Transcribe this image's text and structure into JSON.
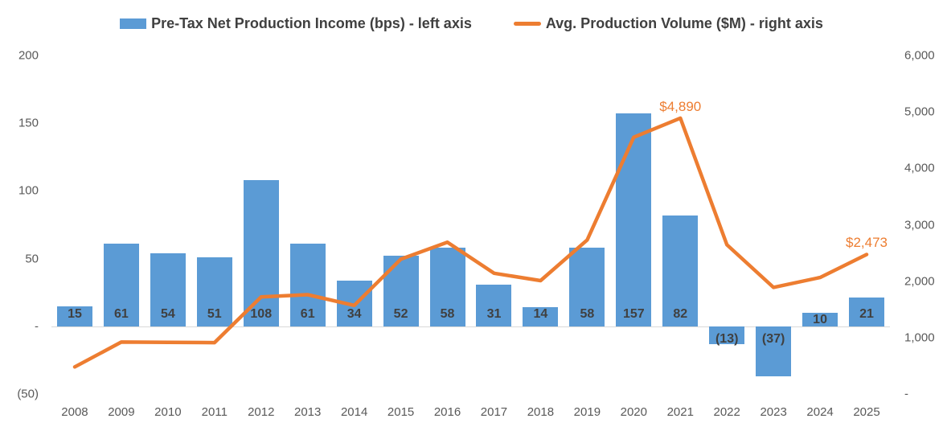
{
  "legend": {
    "items": [
      {
        "label": "Pre-Tax Net Production Income (bps) - left axis",
        "marker": "bar-swatch",
        "color": "#5B9BD5"
      },
      {
        "label": "Avg. Production Volume ($M) - right axis",
        "marker": "line-swatch",
        "color": "#ED7D31"
      }
    ]
  },
  "chart_data": {
    "type": "bar",
    "subtype": "combo-bar-line-dual-axis",
    "title": "",
    "categories": [
      "2008",
      "2009",
      "2010",
      "2011",
      "2012",
      "2013",
      "2014",
      "2015",
      "2016",
      "2017",
      "2018",
      "2019",
      "2020",
      "2021",
      "2022",
      "2023",
      "2024",
      "2025"
    ],
    "series": [
      {
        "name": "Pre-Tax Net Production Income (bps) - left axis",
        "type": "bar",
        "axis": "left",
        "color": "#5B9BD5",
        "values": [
          15,
          61,
          54,
          51,
          108,
          61,
          34,
          52,
          58,
          31,
          14,
          58,
          157,
          82,
          -13,
          -37,
          10,
          21
        ],
        "data_labels": [
          "15",
          "61",
          "54",
          "51",
          "108",
          "61",
          "34",
          "52",
          "58",
          "31",
          "14",
          "58",
          "157",
          "82",
          "(13)",
          "(37)",
          "10",
          "21"
        ]
      },
      {
        "name": "Avg. Production Volume ($M) - right axis",
        "type": "line",
        "axis": "right",
        "color": "#ED7D31",
        "values": [
          480,
          920,
          915,
          910,
          1720,
          1760,
          1570,
          2390,
          2690,
          2140,
          2010,
          2730,
          4550,
          4890,
          2645,
          1890,
          2065,
          2473
        ],
        "annotations": [
          {
            "index": 13,
            "text": "$4,890"
          },
          {
            "index": 17,
            "text": "$2,473"
          }
        ]
      }
    ],
    "left_axis": {
      "min": -50,
      "max": 200,
      "tick_values": [
        200,
        150,
        100,
        50,
        0,
        -50
      ],
      "tick_labels": [
        "200",
        "150",
        "100",
        "50",
        "-",
        "(50)"
      ]
    },
    "right_axis": {
      "min": 0,
      "max": 6000,
      "tick_values": [
        6000,
        5000,
        4000,
        3000,
        2000,
        1000,
        0
      ],
      "tick_labels": [
        "6,000",
        "5,000",
        "4,000",
        "3,000",
        "2,000",
        "1,000",
        "-"
      ]
    },
    "grid": "zero-line-only",
    "legend_position": "top",
    "colors": {
      "bar_fill": "#5B9BD5",
      "line_stroke": "#ED7D31",
      "axis_text": "#595959",
      "bar_label_text": "#404040",
      "legend_text": "#404040",
      "zero_line": "#D9D9D9",
      "background": "#FFFFFF"
    }
  }
}
